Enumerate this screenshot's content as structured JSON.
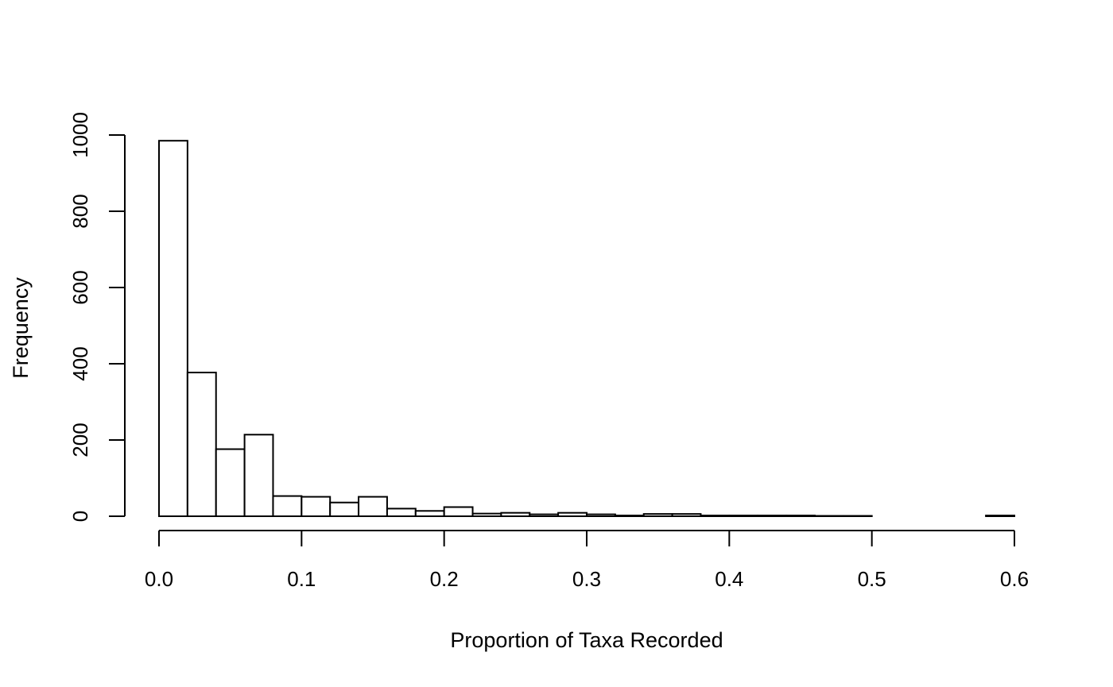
{
  "chart_data": {
    "type": "bar",
    "title": "",
    "xlabel": "Proportion of Taxa Recorded",
    "ylabel": "Frequency",
    "xlim": [
      0,
      0.6
    ],
    "ylim": [
      0,
      1000
    ],
    "bin_width": 0.02,
    "x_ticks": [
      "0.0",
      "0.1",
      "0.2",
      "0.3",
      "0.4",
      "0.5",
      "0.6"
    ],
    "y_ticks": [
      "0",
      "200",
      "400",
      "600",
      "800",
      "1000"
    ],
    "grid": false,
    "legend": "none",
    "bins": [
      {
        "start": 0.0,
        "end": 0.02,
        "count": 985
      },
      {
        "start": 0.02,
        "end": 0.04,
        "count": 377
      },
      {
        "start": 0.04,
        "end": 0.06,
        "count": 176
      },
      {
        "start": 0.06,
        "end": 0.08,
        "count": 214
      },
      {
        "start": 0.08,
        "end": 0.1,
        "count": 53
      },
      {
        "start": 0.1,
        "end": 0.12,
        "count": 51
      },
      {
        "start": 0.12,
        "end": 0.14,
        "count": 36
      },
      {
        "start": 0.14,
        "end": 0.16,
        "count": 51
      },
      {
        "start": 0.16,
        "end": 0.18,
        "count": 20
      },
      {
        "start": 0.18,
        "end": 0.2,
        "count": 14
      },
      {
        "start": 0.2,
        "end": 0.22,
        "count": 24
      },
      {
        "start": 0.22,
        "end": 0.24,
        "count": 7
      },
      {
        "start": 0.24,
        "end": 0.26,
        "count": 9
      },
      {
        "start": 0.26,
        "end": 0.28,
        "count": 5
      },
      {
        "start": 0.28,
        "end": 0.3,
        "count": 9
      },
      {
        "start": 0.3,
        "end": 0.32,
        "count": 5
      },
      {
        "start": 0.32,
        "end": 0.34,
        "count": 2
      },
      {
        "start": 0.34,
        "end": 0.36,
        "count": 6
      },
      {
        "start": 0.36,
        "end": 0.38,
        "count": 6
      },
      {
        "start": 0.38,
        "end": 0.4,
        "count": 2
      },
      {
        "start": 0.4,
        "end": 0.42,
        "count": 2
      },
      {
        "start": 0.42,
        "end": 0.44,
        "count": 2
      },
      {
        "start": 0.44,
        "end": 0.46,
        "count": 2
      },
      {
        "start": 0.46,
        "end": 0.48,
        "count": 1
      },
      {
        "start": 0.48,
        "end": 0.5,
        "count": 1
      },
      {
        "start": 0.5,
        "end": 0.52,
        "count": 0
      },
      {
        "start": 0.52,
        "end": 0.54,
        "count": 0
      },
      {
        "start": 0.54,
        "end": 0.56,
        "count": 0
      },
      {
        "start": 0.56,
        "end": 0.58,
        "count": 0
      },
      {
        "start": 0.58,
        "end": 0.6,
        "count": 2
      }
    ]
  }
}
